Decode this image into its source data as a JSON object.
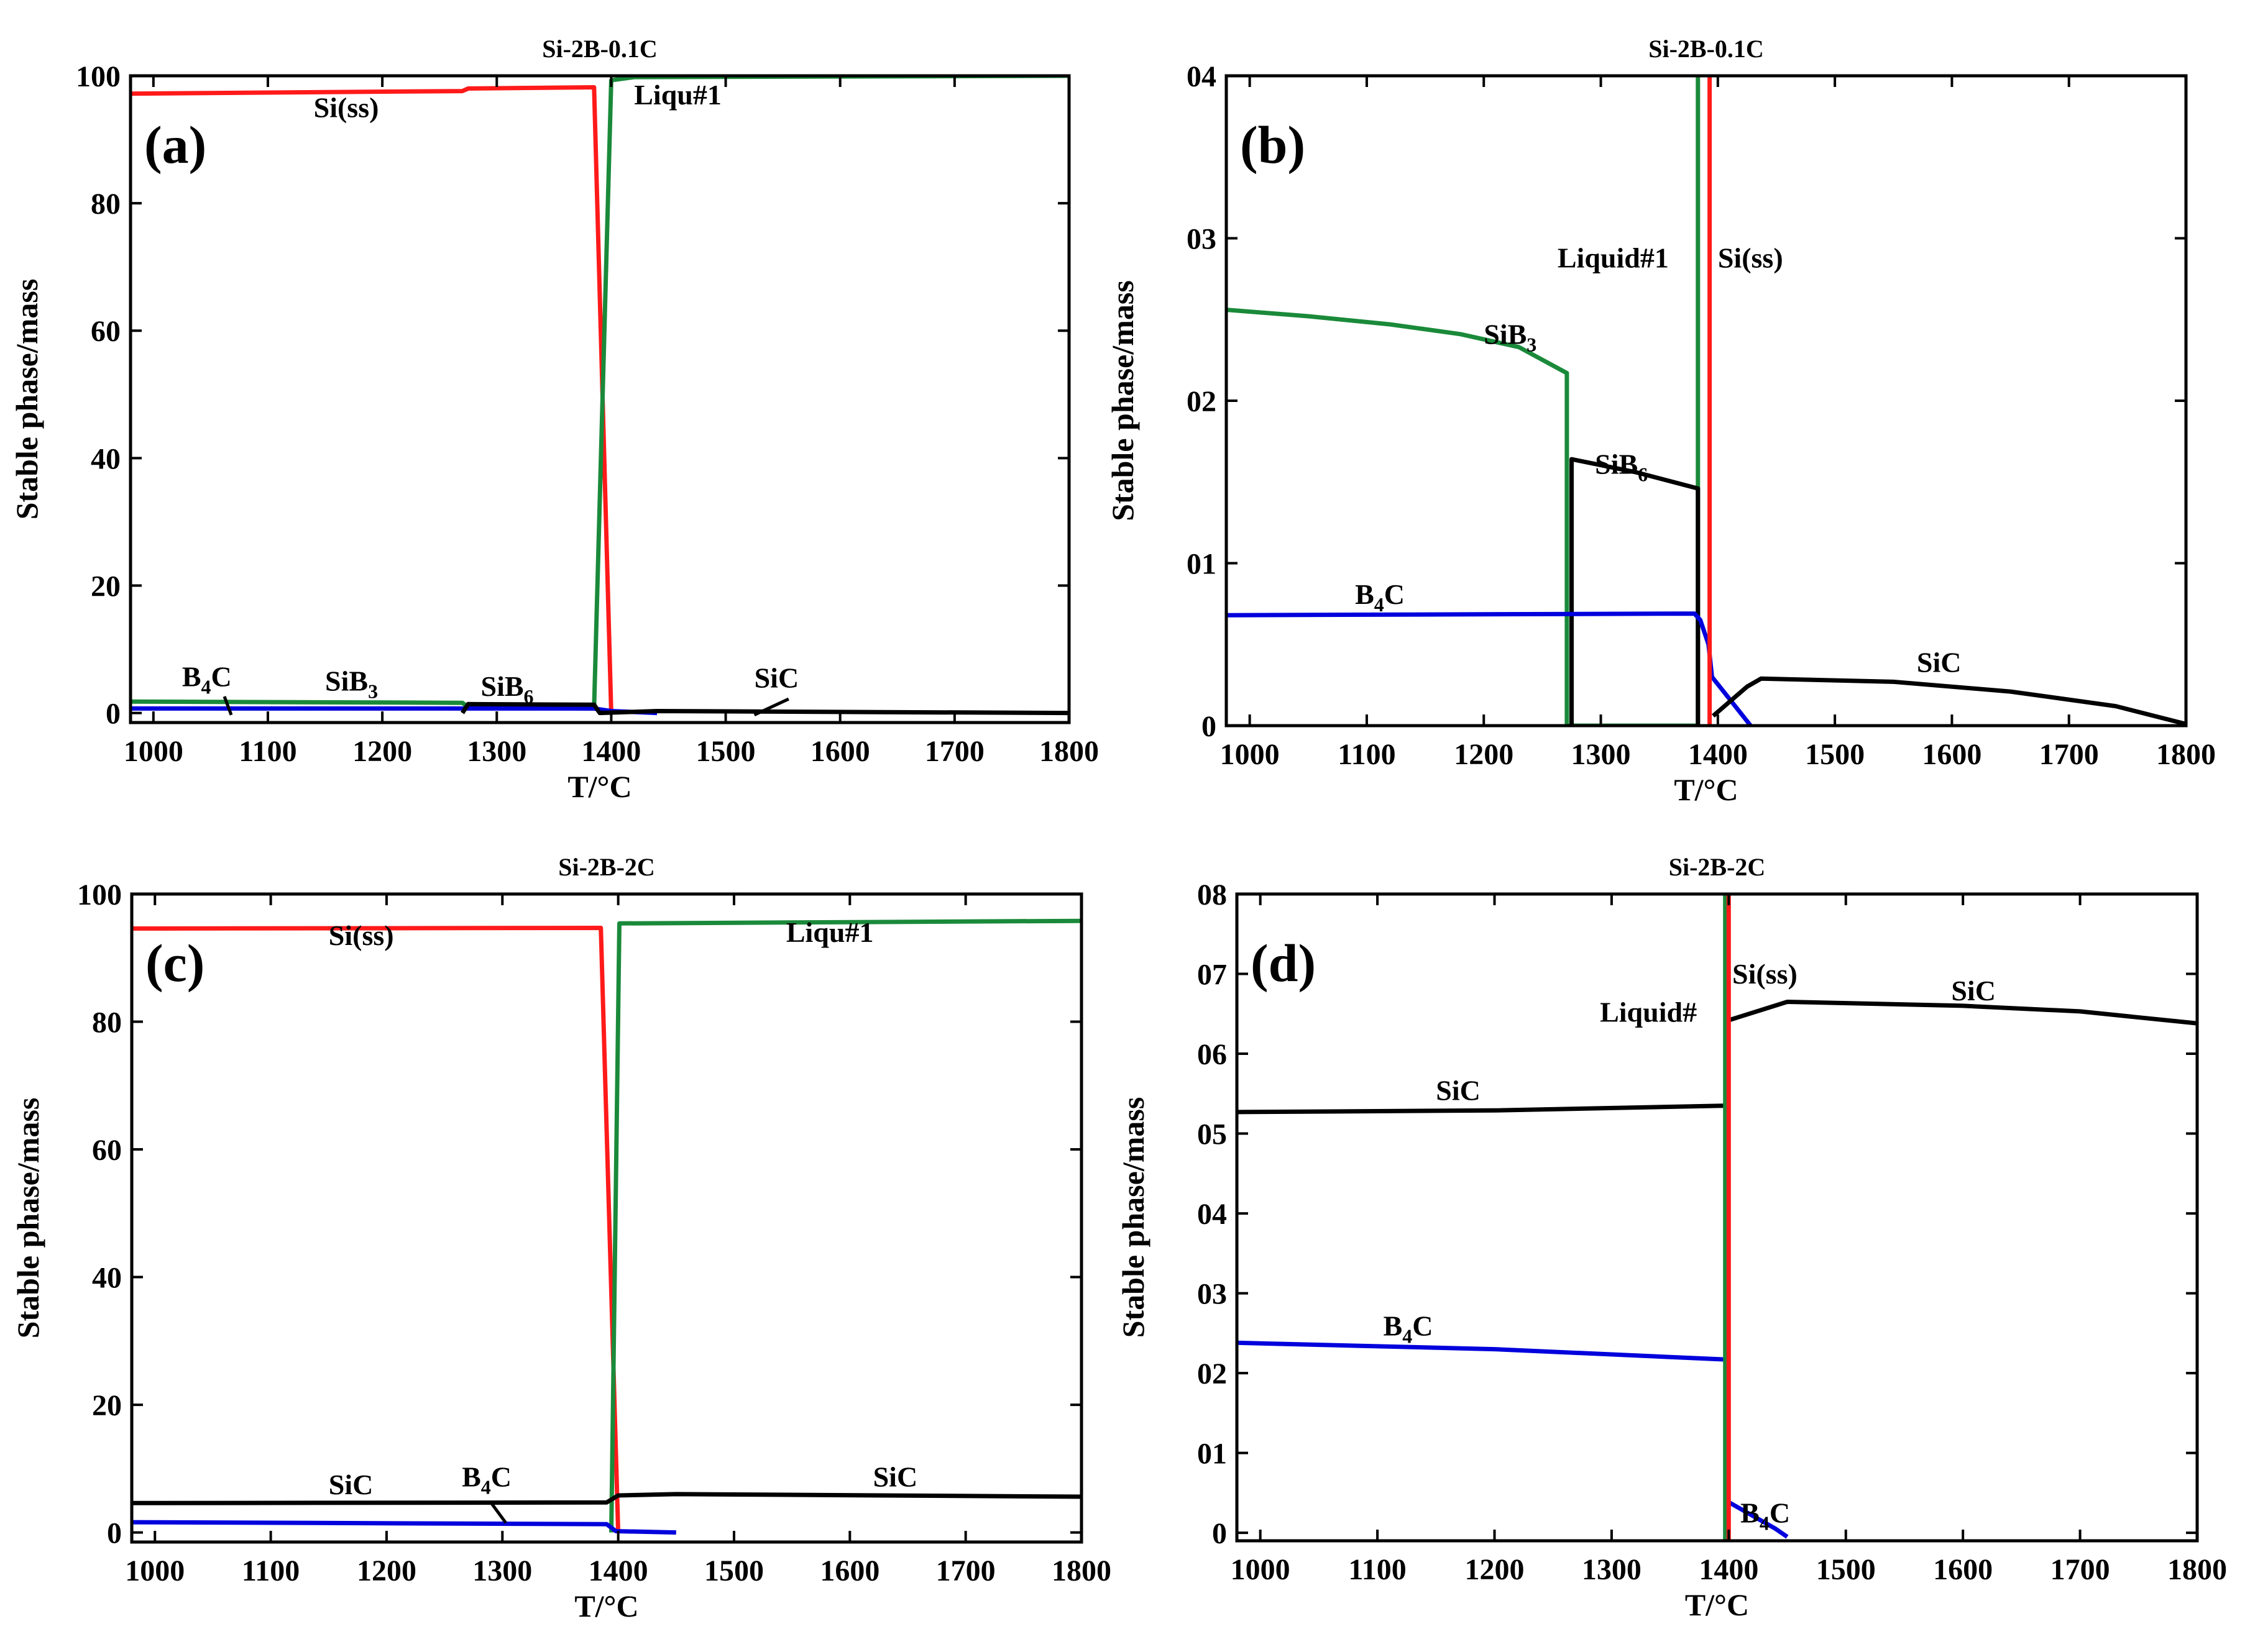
{
  "chart_data": [
    {
      "panel_label": "(a)",
      "type": "line",
      "title": "Si-2B-0.1C",
      "xlabel": "T/°C",
      "ylabel": "Stable phase/mass",
      "xlim": [
        980,
        1800
      ],
      "ylim": [
        -1.5,
        100
      ],
      "xticks": [
        1000,
        1100,
        1200,
        1300,
        1400,
        1500,
        1600,
        1700,
        1800
      ],
      "yticks": [
        0,
        20,
        40,
        60,
        80,
        100
      ],
      "ytick_labels": [
        "0",
        "20",
        "40",
        "60",
        "80",
        "100"
      ],
      "series": [
        {
          "color": "#ff1a1a",
          "points": [
            [
              980,
              97.2
            ],
            [
              1270,
              97.6
            ],
            [
              1275,
              98.0
            ],
            [
              1385,
              98.2
            ],
            [
              1400,
              0
            ]
          ]
        },
        {
          "color": "#1a8a3a",
          "points": [
            [
              980,
              1.8
            ],
            [
              1270,
              1.6
            ],
            [
              1275,
              0.9
            ],
            [
              1385,
              0.7
            ],
            [
              1400,
              99.3
            ],
            [
              1420,
              99.8
            ],
            [
              1800,
              100
            ]
          ]
        },
        {
          "color": "#0000dd",
          "points": [
            [
              980,
              0.7
            ],
            [
              1385,
              0.7
            ],
            [
              1400,
              0.3
            ],
            [
              1440,
              0
            ]
          ]
        },
        {
          "color": "#000000",
          "points": [
            [
              1270,
              0
            ],
            [
              1275,
              1.4
            ],
            [
              1385,
              1.3
            ],
            [
              1390,
              0
            ],
            [
              1440,
              0.3
            ],
            [
              1800,
              0
            ]
          ]
        }
      ],
      "annotations": [
        {
          "text": "Si(ss)",
          "x": 1140,
          "y": 93.5
        },
        {
          "text": "Liqu#1",
          "x": 1420,
          "y": 95.5
        },
        {
          "text": "B",
          "sub": "4",
          "suffix": "C",
          "x": 1025,
          "y": 4.2
        },
        {
          "text": "SiB",
          "sub": "3",
          "x": 1150,
          "y": 3.5
        },
        {
          "text": "SiB",
          "sub": "6",
          "x": 1286,
          "y": 2.7
        },
        {
          "text": "SiC",
          "x": 1525,
          "y": 4.0
        }
      ],
      "leaders": [
        {
          "from": [
            1062,
            2.6
          ],
          "to": [
            1068,
            -0.3
          ]
        },
        {
          "from": [
            1555,
            2.2
          ],
          "to": [
            1525,
            -0.3
          ]
        }
      ]
    },
    {
      "panel_label": "(b)",
      "type": "line",
      "title": "Si-2B-0.1C",
      "xlabel": "T/°C",
      "ylabel": "Stable phase/mass",
      "xlim": [
        980,
        1800
      ],
      "ylim": [
        0,
        4
      ],
      "xticks": [
        1000,
        1100,
        1200,
        1300,
        1400,
        1500,
        1600,
        1700,
        1800
      ],
      "yticks": [
        0,
        1,
        2,
        3,
        4
      ],
      "ytick_labels": [
        "0",
        "01",
        "02",
        "03",
        "04"
      ],
      "series": [
        {
          "color": "#1a8a3a",
          "points": [
            [
              980,
              2.56
            ],
            [
              1050,
              2.52
            ],
            [
              1120,
              2.47
            ],
            [
              1180,
              2.41
            ],
            [
              1230,
              2.33
            ],
            [
              1271,
              2.17
            ],
            [
              1271,
              0
            ],
            [
              1383,
              0
            ],
            [
              1383,
              4.0
            ]
          ]
        },
        {
          "color": "#000000",
          "points": [
            [
              1275,
              0
            ],
            [
              1275,
              1.64
            ],
            [
              1330,
              1.56
            ],
            [
              1383,
              1.46
            ],
            [
              1383,
              0
            ]
          ]
        },
        {
          "color": "#0000dd",
          "points": [
            [
              980,
              0.68
            ],
            [
              1380,
              0.69
            ],
            [
              1385,
              0.65
            ],
            [
              1392,
              0.5
            ],
            [
              1395,
              0.3
            ],
            [
              1428,
              0
            ]
          ]
        },
        {
          "color": "#000000",
          "points": [
            [
              1396,
              0.06
            ],
            [
              1425,
              0.24
            ],
            [
              1437,
              0.29
            ],
            [
              1550,
              0.27
            ],
            [
              1650,
              0.21
            ],
            [
              1740,
              0.12
            ],
            [
              1800,
              0.01
            ]
          ]
        },
        {
          "color": "#ff1a1a",
          "points": [
            [
              1393,
              4.0
            ],
            [
              1393,
              0
            ]
          ]
        }
      ],
      "annotations": [
        {
          "text": "SiB",
          "sub": "3",
          "x": 1200,
          "y": 2.35
        },
        {
          "text": "Liquid#1",
          "x": 1263,
          "y": 2.82
        },
        {
          "text": "Si(ss)",
          "x": 1400,
          "y": 2.82
        },
        {
          "text": "SiB",
          "sub": "6",
          "x": 1295,
          "y": 1.55
        },
        {
          "text": "B",
          "sub": "4",
          "suffix": "C",
          "x": 1090,
          "y": 0.75
        },
        {
          "text": "SiC",
          "x": 1570,
          "y": 0.33
        }
      ],
      "leaders": []
    },
    {
      "panel_label": "(c)",
      "type": "line",
      "title": "Si-2B-2C",
      "xlabel": "T/°C",
      "ylabel": "Stable phase/mass",
      "xlim": [
        980,
        1800
      ],
      "ylim": [
        -1.5,
        100
      ],
      "xticks": [
        1000,
        1100,
        1200,
        1300,
        1400,
        1500,
        1600,
        1700,
        1800
      ],
      "yticks": [
        0,
        20,
        40,
        60,
        80,
        100
      ],
      "ytick_labels": [
        "0",
        "20",
        "40",
        "60",
        "80",
        "100"
      ],
      "series": [
        {
          "color": "#ff1a1a",
          "points": [
            [
              980,
              94.6
            ],
            [
              1385,
              94.7
            ],
            [
              1400,
              0
            ]
          ]
        },
        {
          "color": "#1a8a3a",
          "points": [
            [
              1394,
              0
            ],
            [
              1401,
              95.4
            ],
            [
              1800,
              95.8
            ]
          ]
        },
        {
          "color": "#000000",
          "points": [
            [
              980,
              4.6
            ],
            [
              1390,
              4.7
            ],
            [
              1400,
              5.8
            ],
            [
              1450,
              6.0
            ],
            [
              1800,
              5.6
            ]
          ]
        },
        {
          "color": "#0000dd",
          "points": [
            [
              980,
              1.6
            ],
            [
              1390,
              1.3
            ],
            [
              1398,
              0.2
            ],
            [
              1450,
              0
            ]
          ]
        }
      ],
      "annotations": [
        {
          "text": "Si(ss)",
          "x": 1150,
          "y": 92.0
        },
        {
          "text": "Liqu#1",
          "x": 1545,
          "y": 92.5
        },
        {
          "text": "SiC",
          "x": 1150,
          "y": 6.0
        },
        {
          "text": "B",
          "sub": "4",
          "suffix": "C",
          "x": 1265,
          "y": 7.2
        },
        {
          "text": "SiC",
          "x": 1620,
          "y": 7.2
        }
      ],
      "leaders": [
        {
          "from": [
            1290,
            4.7
          ],
          "to": [
            1303,
            1.5
          ]
        }
      ]
    },
    {
      "panel_label": "(d)",
      "type": "line",
      "title": "Si-2B-2C",
      "xlabel": "T/°C",
      "ylabel": "Stable phase/mass",
      "xlim": [
        980,
        1800
      ],
      "ylim": [
        -0.1,
        8
      ],
      "xticks": [
        1000,
        1100,
        1200,
        1300,
        1400,
        1500,
        1600,
        1700,
        1800
      ],
      "yticks": [
        0,
        1,
        2,
        3,
        4,
        5,
        6,
        7,
        8
      ],
      "ytick_labels": [
        "0",
        "01",
        "02",
        "03",
        "04",
        "05",
        "06",
        "07",
        "08"
      ],
      "series": [
        {
          "color": "#000000",
          "points": [
            [
              980,
              5.27
            ],
            [
              1200,
              5.29
            ],
            [
              1398,
              5.35
            ],
            [
              1398,
              6.41
            ],
            [
              1450,
              6.65
            ],
            [
              1600,
              6.6
            ],
            [
              1700,
              6.53
            ],
            [
              1800,
              6.38
            ]
          ]
        },
        {
          "color": "#0000dd",
          "points": [
            [
              980,
              2.38
            ],
            [
              1200,
              2.3
            ],
            [
              1398,
              2.17
            ],
            [
              1398,
              0.4
            ],
            [
              1440,
              0.05
            ],
            [
              1450,
              -0.05
            ]
          ]
        },
        {
          "color": "#1a8a3a",
          "points": [
            [
              1397,
              8.0
            ],
            [
              1397,
              -0.1
            ]
          ]
        },
        {
          "color": "#ff1a1a",
          "points": [
            [
              1400,
              8.0
            ],
            [
              1400,
              -0.1
            ]
          ]
        }
      ],
      "annotations": [
        {
          "text": "Si(ss)",
          "x": 1403,
          "y": 6.88
        },
        {
          "text": "Liquid#",
          "x": 1290,
          "y": 6.4
        },
        {
          "text": "SiC",
          "x": 1590,
          "y": 6.67
        },
        {
          "text": "SiC",
          "x": 1150,
          "y": 5.42
        },
        {
          "text": "B",
          "sub": "4",
          "suffix": "C",
          "x": 1105,
          "y": 2.47
        },
        {
          "text": "B",
          "sub": "4",
          "suffix": "C",
          "x": 1410,
          "y": 0.13
        }
      ],
      "leaders": []
    }
  ]
}
